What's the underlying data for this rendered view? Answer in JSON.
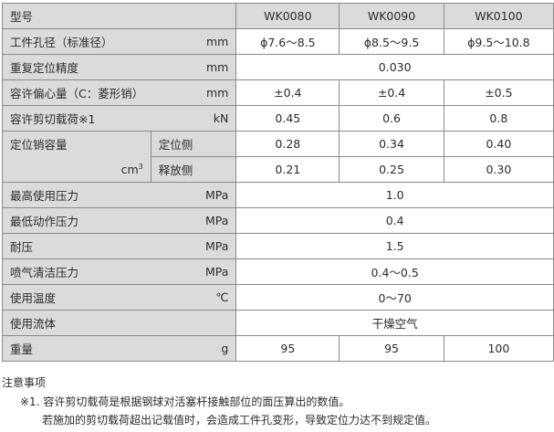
{
  "table": {
    "header": {
      "label": "型号",
      "models": [
        "WK0080",
        "WK0090",
        "WK0100"
      ]
    },
    "rows": {
      "bore_diameter": {
        "label": "工件孔径（标准径）",
        "unit": "mm",
        "values": [
          "ϕ7.6～8.5",
          "ϕ8.5～9.5",
          "ϕ9.5～10.8"
        ]
      },
      "repeatability": {
        "label": "重复定位精度",
        "unit": "mm",
        "value": "0.030"
      },
      "eccentricity": {
        "label": "容许偏心量（C：菱形销）",
        "unit": "mm",
        "values": [
          "±0.4",
          "±0.4",
          "±0.5"
        ]
      },
      "shear_load": {
        "label": "容许剪切载荷※1",
        "unit": "kN",
        "values": [
          "0.45",
          "0.6",
          "0.8"
        ]
      },
      "pin_volume": {
        "label": "定位销容量",
        "unit_base": "cm",
        "unit_sup": "3",
        "locate": {
          "label": "定位侧",
          "values": [
            "0.28",
            "0.34",
            "0.40"
          ]
        },
        "release": {
          "label": "释放侧",
          "values": [
            "0.21",
            "0.25",
            "0.30"
          ]
        }
      },
      "max_pressure": {
        "label": "最高使用压力",
        "unit": "MPa",
        "value": "1.0"
      },
      "min_pressure": {
        "label": "最低动作压力",
        "unit": "MPa",
        "value": "0.4"
      },
      "proof_pressure": {
        "label": "耐压",
        "unit": "MPa",
        "value": "1.5"
      },
      "blow_pressure": {
        "label": "喷气清洁压力",
        "unit": "MPa",
        "value": "0.4～0.5"
      },
      "temperature": {
        "label": "使用温度",
        "unit": "℃",
        "value": "0～70"
      },
      "fluid": {
        "label": "使用流体",
        "unit": "",
        "value": "干燥空气"
      },
      "weight": {
        "label": "重量",
        "unit": "g",
        "values": [
          "95",
          "95",
          "100"
        ]
      }
    }
  },
  "notes": {
    "title": "注意事项",
    "line1": "※1. 容许剪切载荷是根据钢球对活塞杆接触部位的面压算出的数值。",
    "line2": "若施加的剪切载荷超出记载值时，会造成工件孔变形，导致定位力达不到规定值。"
  },
  "colors": {
    "header_shade": "#dadcdc",
    "border": "#8a8a8a",
    "text": "#2b2b2b"
  }
}
